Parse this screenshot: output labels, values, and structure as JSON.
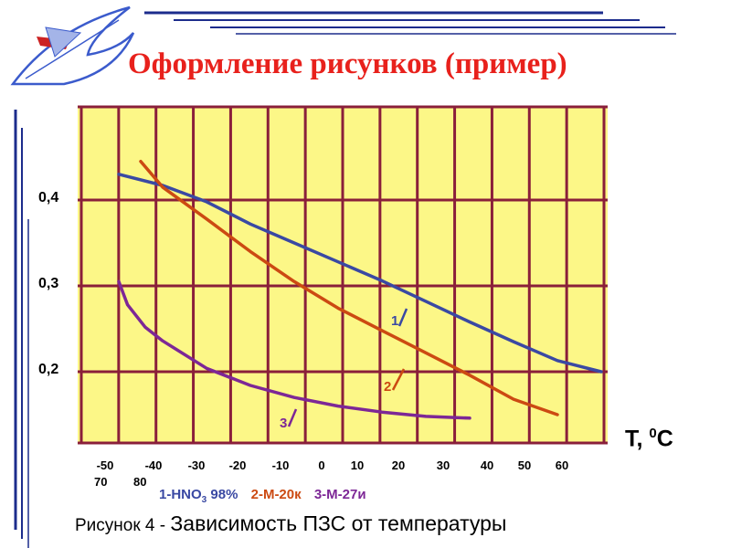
{
  "slide_title": "Оформление рисунков (пример)",
  "caption_prefix": "Рисунок 4 - ",
  "caption_text": "Зависимость ПЗС от температуры",
  "logo": {
    "icon": "airplane-logo-icon",
    "color": "#3b5bcc"
  },
  "chart_data": {
    "type": "line",
    "xlabel_prefix": "T, ",
    "xlabel_sup": "0",
    "xlabel_unit": "С",
    "x_tick_labels_row1": [
      "-50",
      "-40",
      "-30",
      "-20",
      "-10",
      "0",
      "10",
      "20",
      "30",
      "40",
      "50",
      "60"
    ],
    "x_tick_labels_row2": [
      "70",
      "80"
    ],
    "y_tick_labels": [
      "0,4",
      "0,3",
      "0,2"
    ],
    "y_ticks": [
      0.4,
      0.3,
      0.2
    ],
    "ylim": [
      0.12,
      0.5
    ],
    "grid": true,
    "background": "#fcf787",
    "series": [
      {
        "id": "1",
        "color": "#3a49a3",
        "legend_prefix": "1-HNO",
        "legend_sub": "3",
        "legend_suffix": " 98%",
        "curve_label": "1",
        "points": [
          [
            -50,
            0.43
          ],
          [
            -40,
            0.417
          ],
          [
            -30,
            0.398
          ],
          [
            -20,
            0.372
          ],
          [
            -10,
            0.35
          ],
          [
            0,
            0.328
          ],
          [
            10,
            0.306
          ],
          [
            20,
            0.282
          ],
          [
            30,
            0.258
          ],
          [
            40,
            0.235
          ],
          [
            50,
            0.213
          ],
          [
            60,
            0.2
          ]
        ]
      },
      {
        "id": "2",
        "color": "#cc4a12",
        "legend_text": "2-М-20к",
        "curve_label": "2",
        "points": [
          [
            -45,
            0.445
          ],
          [
            -40,
            0.415
          ],
          [
            -30,
            0.378
          ],
          [
            -20,
            0.34
          ],
          [
            -10,
            0.305
          ],
          [
            0,
            0.274
          ],
          [
            10,
            0.248
          ],
          [
            20,
            0.222
          ],
          [
            30,
            0.196
          ],
          [
            40,
            0.168
          ],
          [
            50,
            0.15
          ]
        ]
      },
      {
        "id": "3",
        "color": "#7d2796",
        "legend_text": "3-М-27и",
        "curve_label": "3",
        "points": [
          [
            -50,
            0.305
          ],
          [
            -48,
            0.278
          ],
          [
            -44,
            0.252
          ],
          [
            -40,
            0.236
          ],
          [
            -30,
            0.204
          ],
          [
            -20,
            0.184
          ],
          [
            -10,
            0.17
          ],
          [
            0,
            0.16
          ],
          [
            10,
            0.153
          ],
          [
            20,
            0.148
          ],
          [
            30,
            0.146
          ]
        ]
      }
    ]
  }
}
